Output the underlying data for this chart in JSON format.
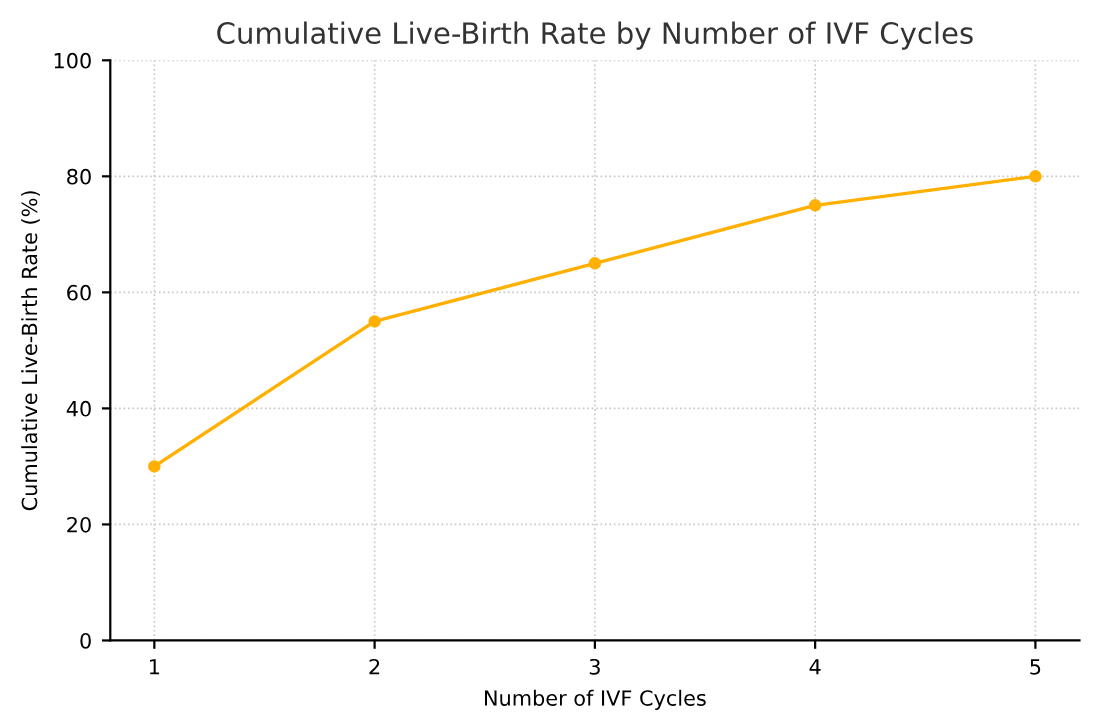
{
  "chart_data": {
    "type": "line",
    "title": "Cumulative Live-Birth Rate by Number of IVF Cycles",
    "xlabel": "Number of IVF Cycles",
    "ylabel": "Cumulative Live-Birth Rate (%)",
    "x": [
      1,
      2,
      3,
      4,
      5
    ],
    "series": [
      {
        "color": "#ffb000",
        "values": [
          30,
          55,
          65,
          75,
          80
        ]
      }
    ],
    "xlim": [
      0.8,
      5.2
    ],
    "xticks": [
      1,
      2,
      3,
      4,
      5
    ],
    "ylim": [
      0,
      100
    ],
    "yticks": [
      0,
      20,
      40,
      60,
      80,
      100
    ],
    "grid": true,
    "marker": "circle",
    "line_style": "solid"
  }
}
